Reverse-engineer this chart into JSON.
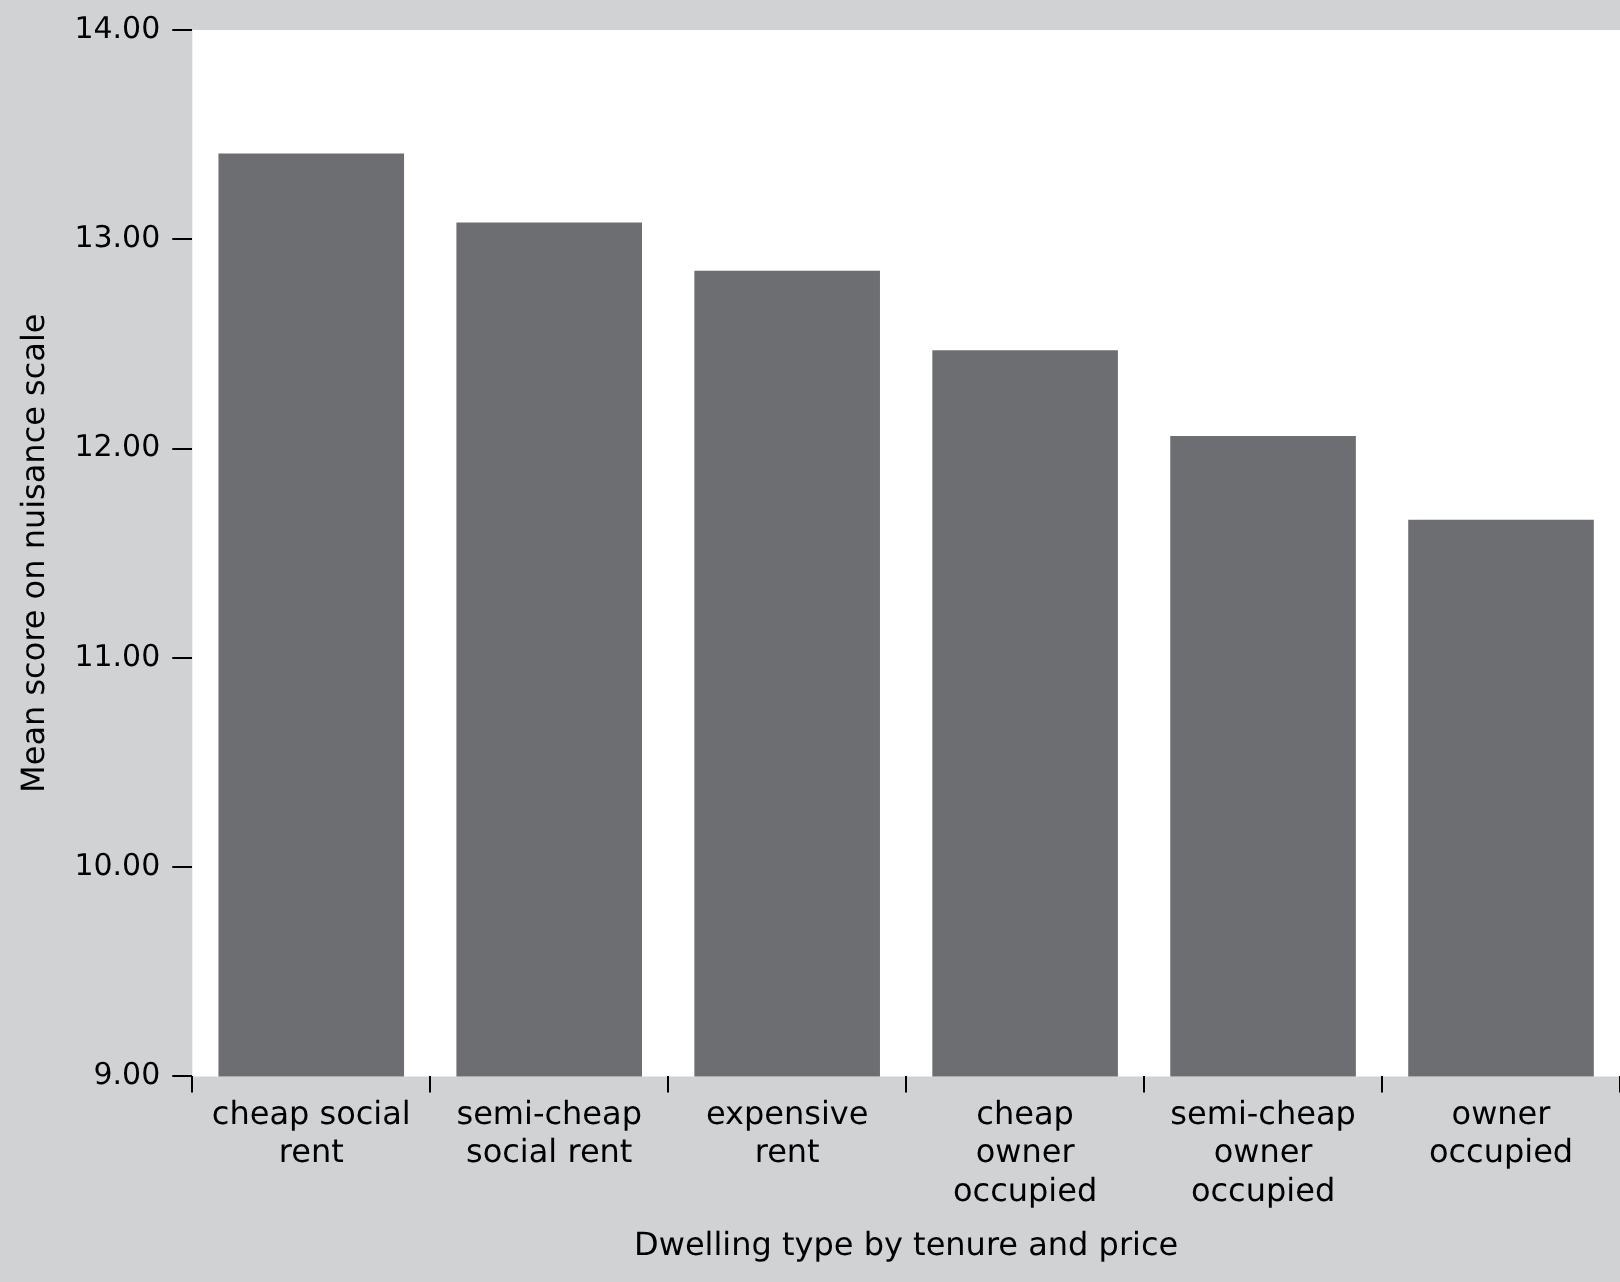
{
  "chart_data": {
    "type": "bar",
    "xlabel": "Dwelling type by tenure and price",
    "ylabel": "Mean score on nuisance scale",
    "categories": [
      "cheap social rent",
      "semi-cheap social rent",
      "expensive rent",
      "cheap owner occupied",
      "semi-cheap owner occupied",
      "owner occupied"
    ],
    "values": [
      13.41,
      13.08,
      12.85,
      12.47,
      12.06,
      11.66
    ],
    "color": "#6d6e72",
    "ylim": [
      9,
      14
    ],
    "yticks": [
      {
        "value": 9,
        "label": "9.00"
      },
      {
        "value": 10,
        "label": "10.00"
      },
      {
        "value": 11,
        "label": "11.00"
      },
      {
        "value": 12,
        "label": "12.00"
      },
      {
        "value": 13,
        "label": "13.00"
      },
      {
        "value": 14,
        "label": "14.00"
      }
    ],
    "grid": false,
    "legend": false
  }
}
